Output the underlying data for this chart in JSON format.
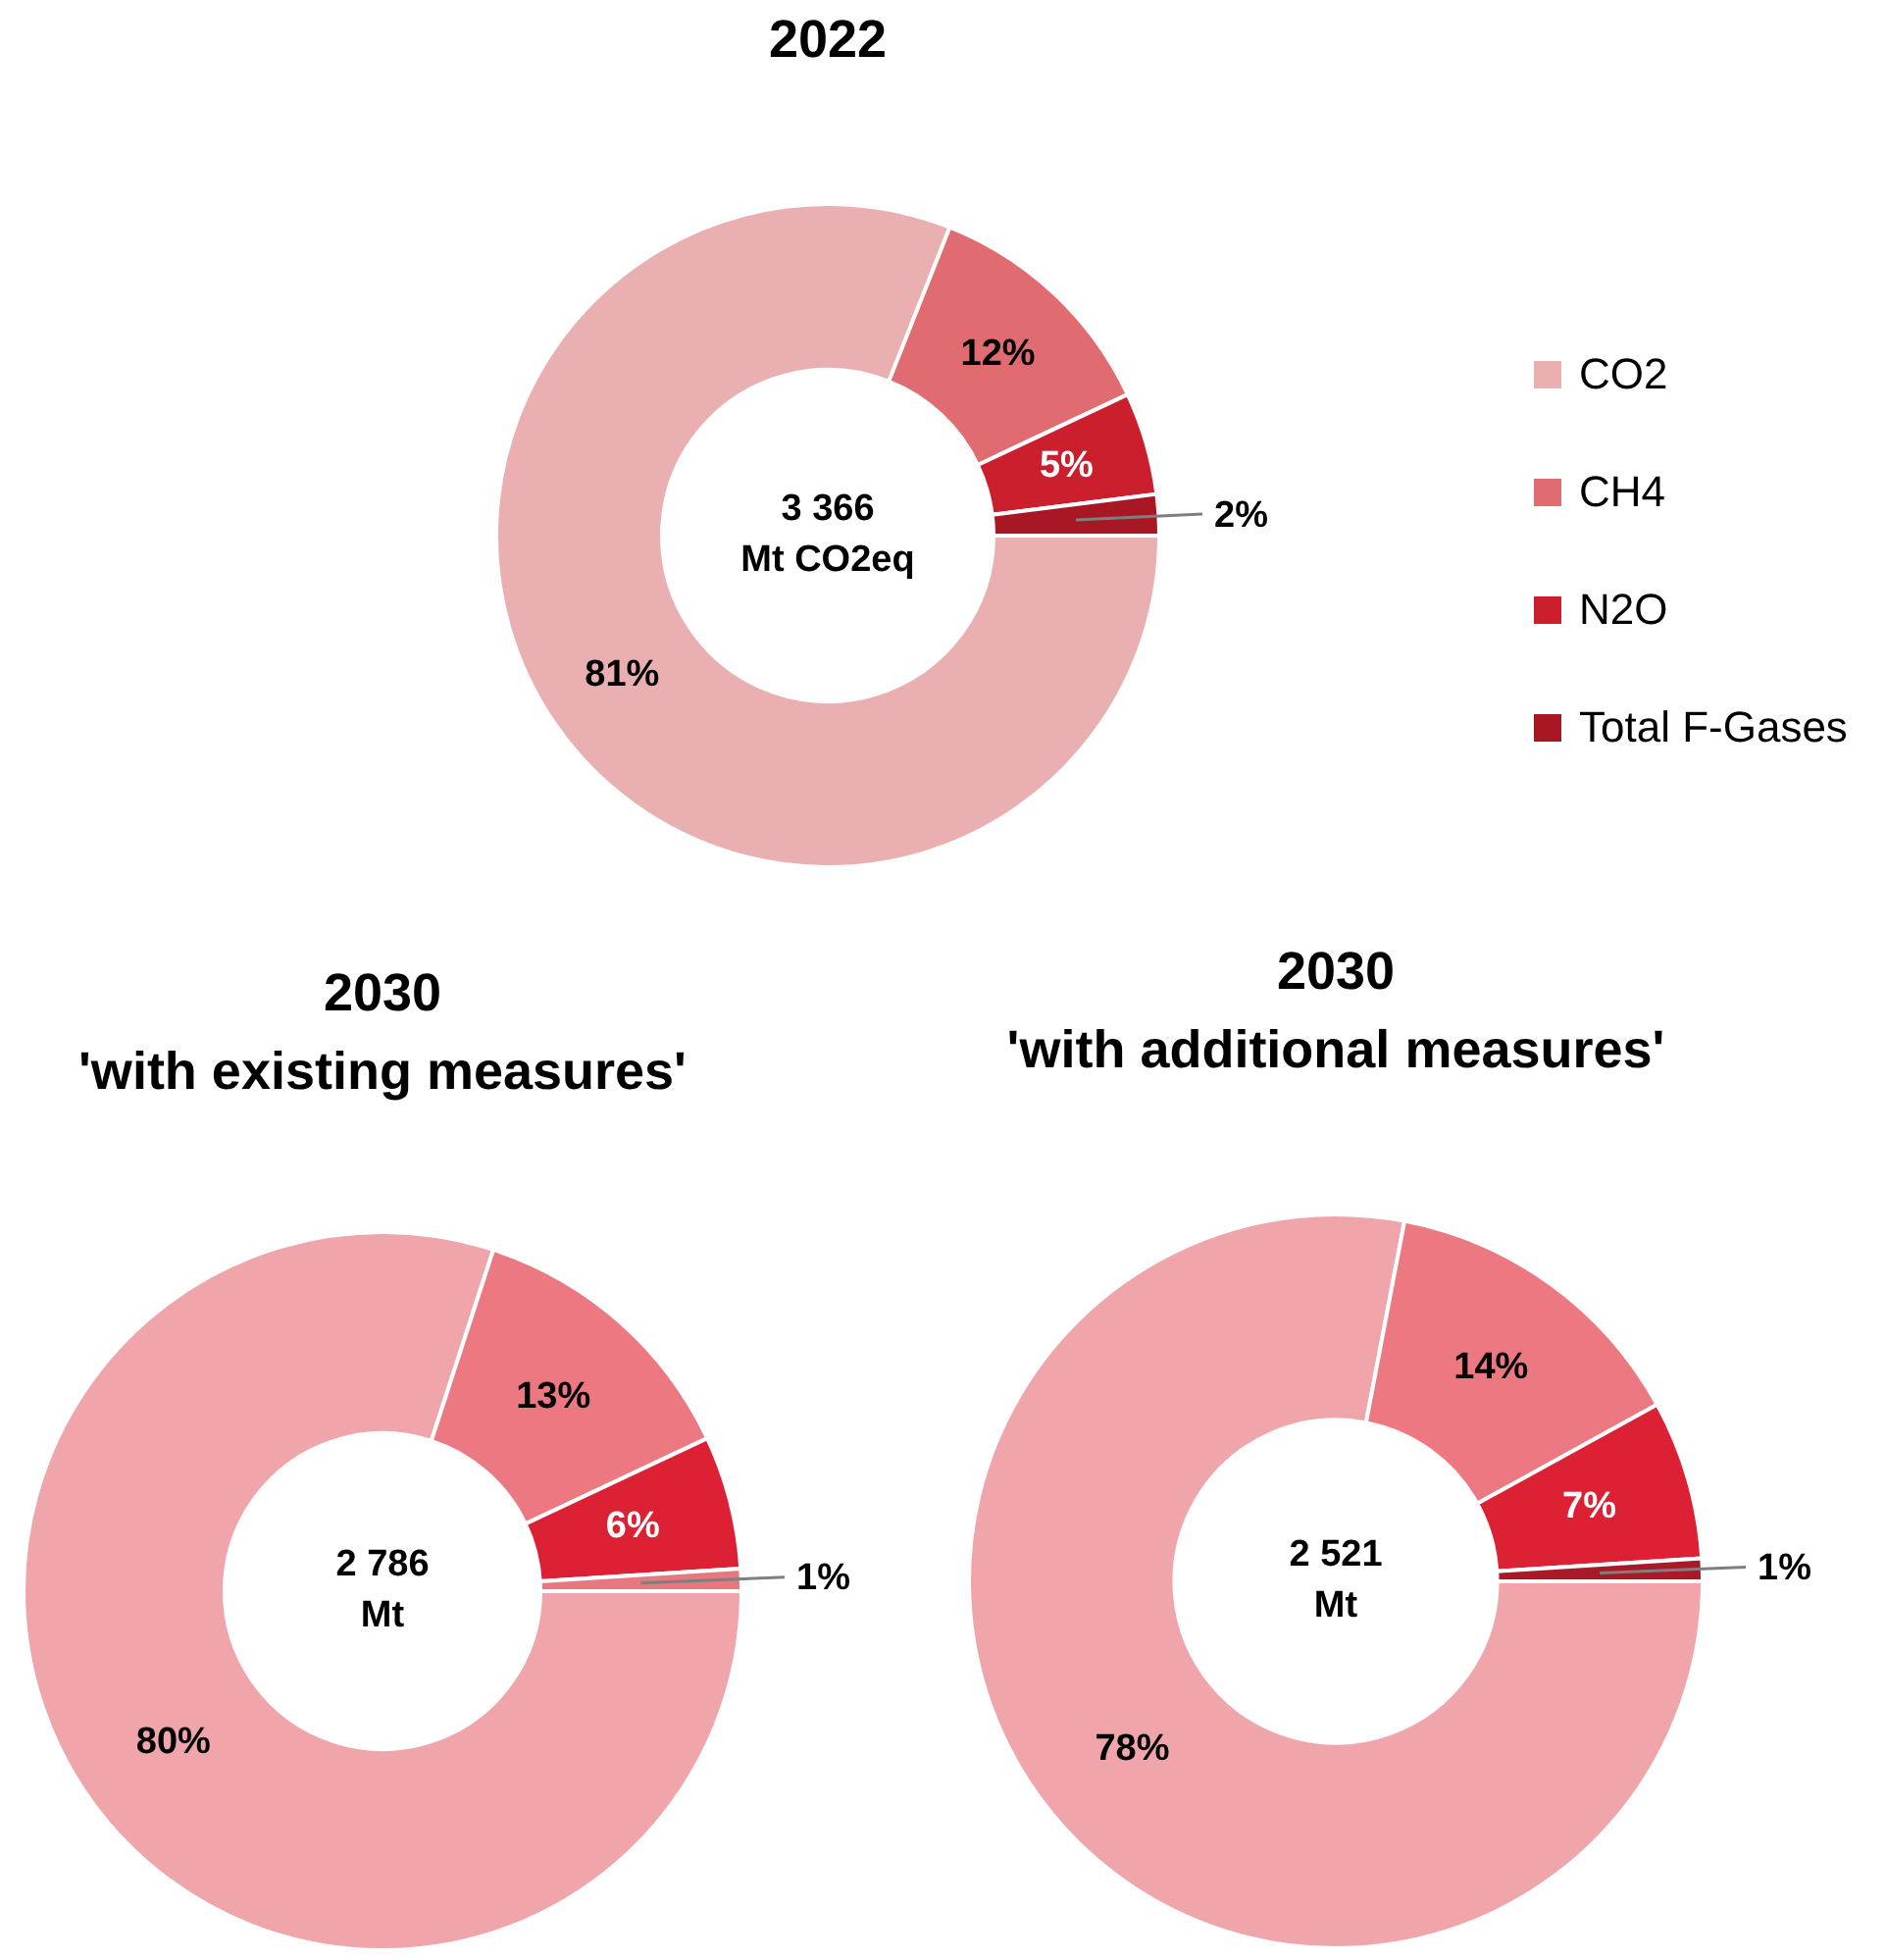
{
  "chart_data": [
    {
      "type": "donut",
      "title": "2022",
      "categories": [
        "CO2",
        "CH4",
        "N2O",
        "Total F-Gases"
      ],
      "values": [
        81,
        12,
        5,
        2
      ],
      "colors": [
        "#e9afb1",
        "#e06c72",
        "#cc1f2e",
        "#a81824"
      ],
      "value_labels": [
        "81%",
        "12%",
        "5%",
        "2%"
      ],
      "annotations": [
        "3 366\nMt CO2eq"
      ],
      "legend": "right"
    },
    {
      "type": "donut",
      "title": "2030",
      "subtitle": "'with existing measures'",
      "categories": [
        null,
        null,
        null,
        null
      ],
      "values": [
        80,
        13,
        6,
        1
      ],
      "colors": [
        "#f0a5ab",
        "#ec7882",
        "#db2133",
        "#e87880"
      ],
      "value_labels": [
        "80%",
        "13%",
        "6%",
        "1%"
      ],
      "annotations": [
        "2 786\nMt"
      ],
      "legend": false
    },
    {
      "type": "donut",
      "title": "2030",
      "subtitle": "'with additional measures'",
      "categories": [
        null,
        null,
        null,
        null
      ],
      "values": [
        78,
        14,
        7,
        1
      ],
      "colors": [
        "#f0a5ab",
        "#ec7882",
        "#db2133",
        "#a81a27"
      ],
      "value_labels": [
        "78%",
        "14%",
        "7%",
        "1%"
      ],
      "annotations": [
        "2 521\nMt"
      ],
      "legend": false
    }
  ]
}
